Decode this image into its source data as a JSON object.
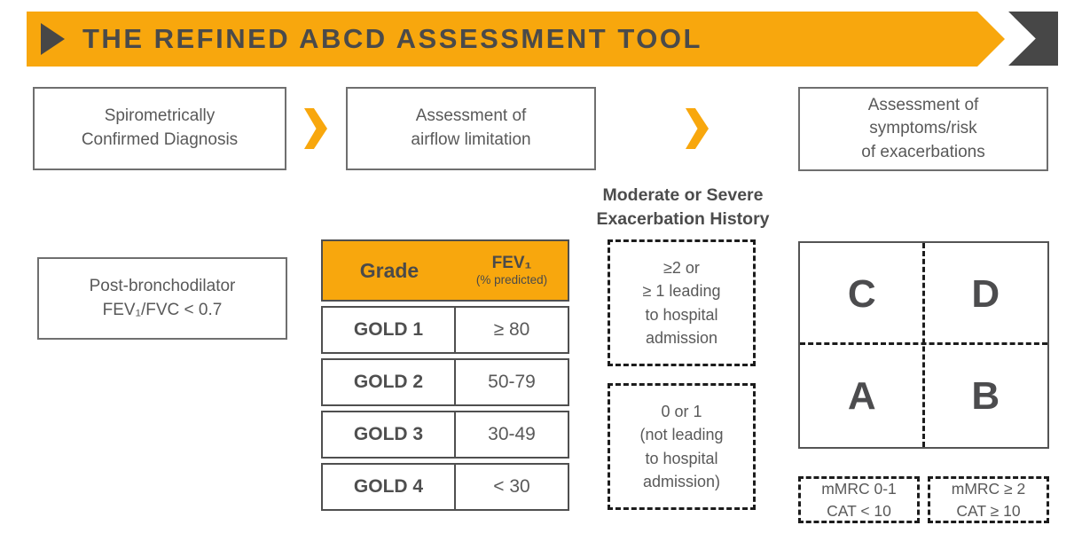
{
  "colors": {
    "accent_orange": "#F8A70D",
    "dark_gray_shape": "#474747",
    "title_text": "#4A4A4A",
    "body_text": "#595959",
    "box_border": "#6F6F6F",
    "table_border": "#4F4F4F",
    "dashed_border": "#1C1C1C"
  },
  "banner": {
    "title": "THE REFINED ABCD ASSESSMENT TOOL"
  },
  "flow": {
    "step1": "Spirometrically\nConfirmed Diagnosis",
    "step2": "Assessment of\nairflow limitation",
    "step3": "Assessment of\nsymptoms/risk\nof exacerbations"
  },
  "criteria_box": "Post-bronchodilator\nFEV₁/FVC < 0.7",
  "gold_table": {
    "header": {
      "grade": "Grade",
      "fev": "FEV₁",
      "fev_sub": "(% predicted)"
    },
    "rows": [
      {
        "grade": "GOLD 1",
        "value": "≥ 80"
      },
      {
        "grade": "GOLD 2",
        "value": "50-79"
      },
      {
        "grade": "GOLD 3",
        "value": "30-49"
      },
      {
        "grade": "GOLD 4",
        "value": "< 30"
      }
    ]
  },
  "exacerbation": {
    "heading": "Moderate or Severe\nExacerbation History",
    "high_risk": "≥2 or\n≥ 1 leading\nto hospital\nadmission",
    "low_risk": "0 or 1\n(not leading\nto hospital\nadmission)"
  },
  "quadrant": {
    "top_left": "C",
    "top_right": "D",
    "bottom_left": "A",
    "bottom_right": "B"
  },
  "symptom_scales": {
    "left": "mMRC 0-1\nCAT < 10",
    "right": "mMRC ≥ 2\nCAT ≥ 10"
  }
}
